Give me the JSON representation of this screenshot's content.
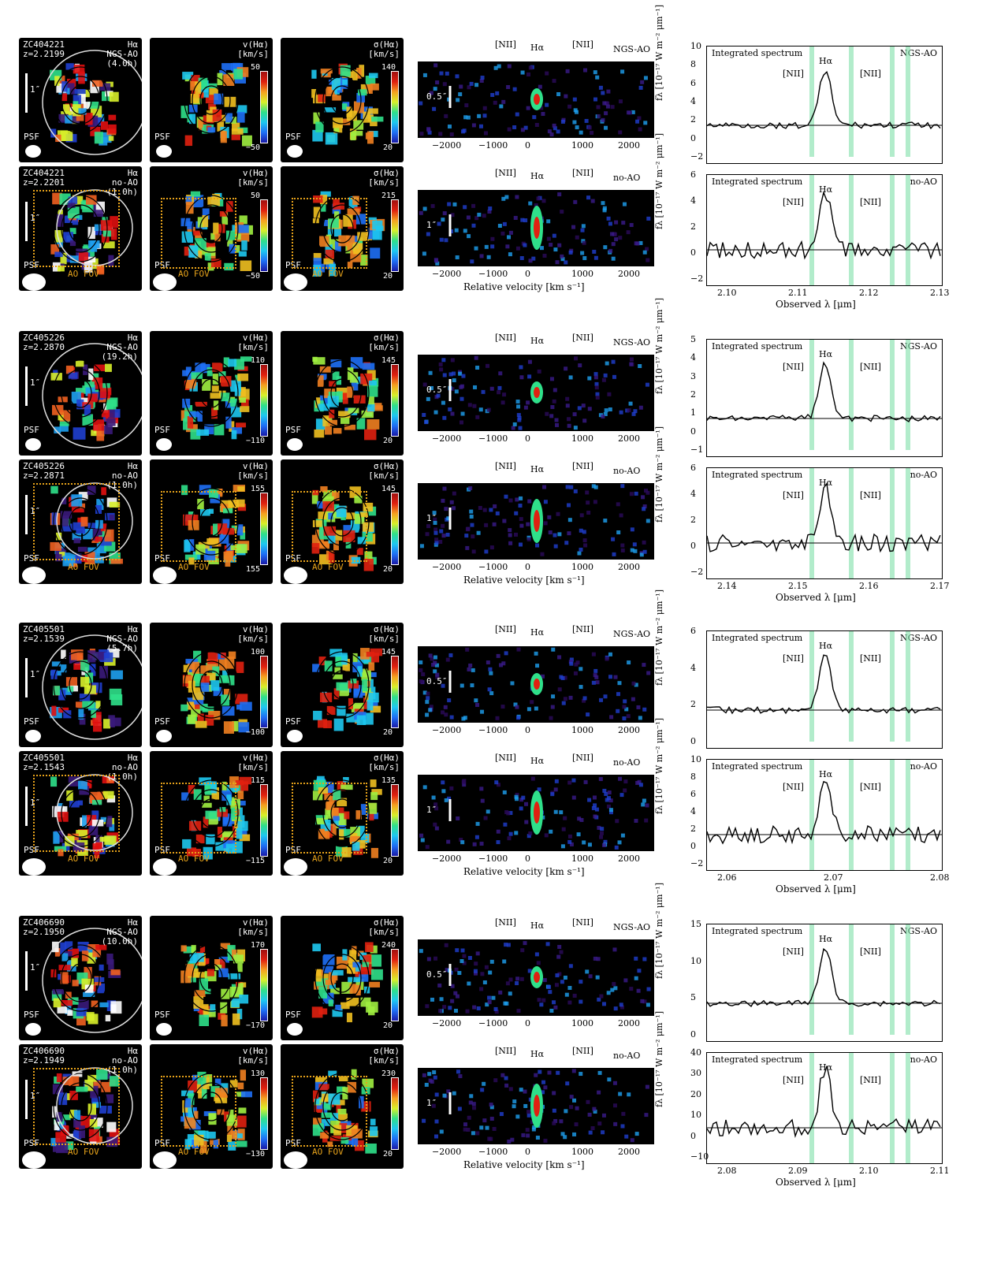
{
  "groups": [
    {
      "rows": [
        {
          "id": "ZC404221",
          "z": "z=2.2199",
          "line": "Hα",
          "mode": "NGS-AO",
          "time": "(4.0h)",
          "v_max": "50",
          "v_min": "−50",
          "s_max": "140",
          "s_min": "20",
          "scale_label": "1″",
          "pv_scale": "0.5″",
          "ao_fov": false
        },
        {
          "id": "ZC404221",
          "z": "z=2.2201",
          "line": "Hα",
          "mode": "no-AO",
          "time": "(1.0h)",
          "v_max": "50",
          "v_min": "−50",
          "s_max": "215",
          "s_min": "20",
          "scale_label": "1″",
          "pv_scale": "1″",
          "ao_fov": true
        }
      ],
      "spec_ticks": [
        "2.10",
        "2.11",
        "2.12",
        "2.13"
      ],
      "spec_y_ao": [
        "10",
        "8",
        "6",
        "4",
        "2",
        "0",
        "−2"
      ],
      "spec_y_noao": [
        "6",
        "4",
        "2",
        "0",
        "−2"
      ]
    },
    {
      "rows": [
        {
          "id": "ZC405226",
          "z": "z=2.2870",
          "line": "Hα",
          "mode": "NGS-AO",
          "time": "(19.2h)",
          "v_max": "110",
          "v_min": "−110",
          "s_max": "145",
          "s_min": "20",
          "scale_label": "1″",
          "pv_scale": "0.5″",
          "ao_fov": false
        },
        {
          "id": "ZC405226",
          "z": "z=2.2871",
          "line": "Hα",
          "mode": "no-AO",
          "time": "(1.0h)",
          "v_max": "155",
          "v_min": "155",
          "s_max": "145",
          "s_min": "20",
          "scale_label": "1″",
          "pv_scale": "1″",
          "ao_fov": true
        }
      ],
      "spec_ticks": [
        "2.14",
        "2.15",
        "2.16",
        "2.17"
      ],
      "spec_y_ao": [
        "5",
        "4",
        "3",
        "2",
        "1",
        "0",
        "−1"
      ],
      "spec_y_noao": [
        "6",
        "4",
        "2",
        "0",
        "−2"
      ]
    },
    {
      "rows": [
        {
          "id": "ZC405501",
          "z": "z=2.1539",
          "line": "Hα",
          "mode": "NGS-AO",
          "time": "(5.7h)",
          "v_max": "100",
          "v_min": "−100",
          "s_max": "145",
          "s_min": "20",
          "scale_label": "1″",
          "pv_scale": "0.5″",
          "ao_fov": false
        },
        {
          "id": "ZC405501",
          "z": "z=2.1543",
          "line": "Hα",
          "mode": "no-AO",
          "time": "(1.0h)",
          "v_max": "115",
          "v_min": "−115",
          "s_max": "135",
          "s_min": "20",
          "scale_label": "1″",
          "pv_scale": "1″",
          "ao_fov": true
        }
      ],
      "spec_ticks": [
        "2.06",
        "2.07",
        "2.08"
      ],
      "spec_y_ao": [
        "6",
        "4",
        "2",
        "0"
      ],
      "spec_y_noao": [
        "10",
        "8",
        "6",
        "4",
        "2",
        "0",
        "−2"
      ]
    },
    {
      "rows": [
        {
          "id": "ZC406690",
          "z": "z=2.1950",
          "line": "Hα",
          "mode": "NGS-AO",
          "time": "(10.0h)",
          "v_max": "170",
          "v_min": "−170",
          "s_max": "240",
          "s_min": "20",
          "scale_label": "1″",
          "pv_scale": "0.5″",
          "ao_fov": false
        },
        {
          "id": "ZC406690",
          "z": "z=2.1949",
          "line": "Hα",
          "mode": "no-AO",
          "time": "(1.0h)",
          "v_max": "130",
          "v_min": "−130",
          "s_max": "230",
          "s_min": "20",
          "scale_label": "1″",
          "pv_scale": "1″",
          "ao_fov": true
        }
      ],
      "spec_ticks": [
        "2.08",
        "2.09",
        "2.10",
        "2.11"
      ],
      "spec_y_ao": [
        "15",
        "10",
        "5",
        "0"
      ],
      "spec_y_noao": [
        "40",
        "30",
        "20",
        "10",
        "0",
        "−10"
      ]
    }
  ],
  "labels": {
    "psf": "PSF",
    "ao_fov": "AO FOV",
    "vel_title": "v(Hα)",
    "sig_title": "σ(Hα)",
    "kms": "[km/s]",
    "nii": "[NII]",
    "ha": "Hα",
    "pv_ticks": [
      "−2000",
      "−1000",
      "0",
      "1000",
      "2000"
    ],
    "pv_xlabel": "Relative velocity  [km s⁻¹]",
    "integrated": "Integrated spectrum",
    "spec_ylabel": "fλ [10⁻¹⁷ W m⁻² μm⁻¹]",
    "spec_xlabel": "Observed λ  [μm]"
  },
  "colors": {
    "panel_bg": "#000000",
    "fov": "#e6a21a",
    "sky_band": "#7fe0a8"
  }
}
